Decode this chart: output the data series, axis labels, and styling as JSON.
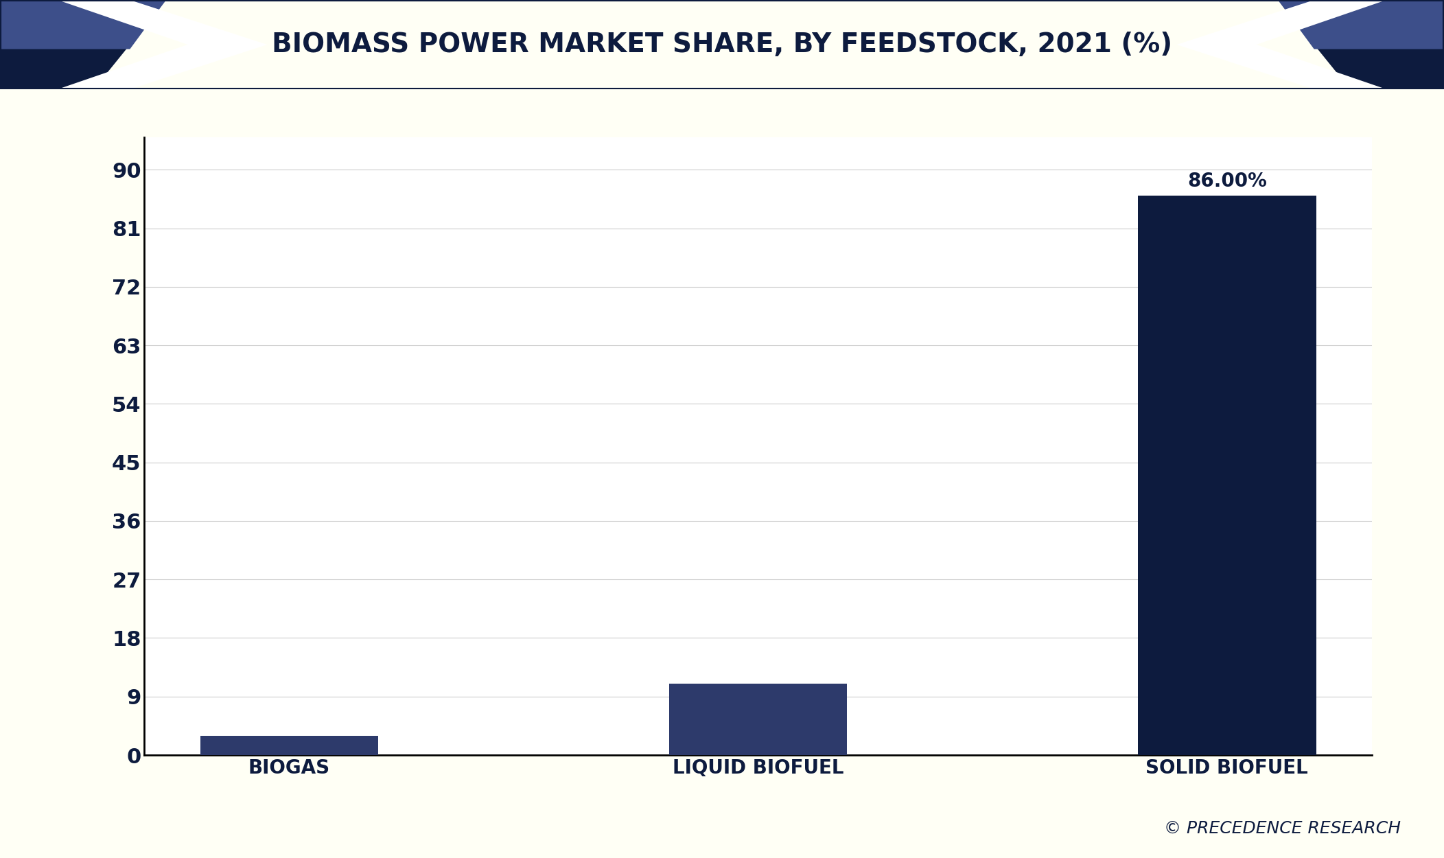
{
  "title": "BIOMASS POWER MARKET SHARE, BY FEEDSTOCK, 2021 (%)",
  "categories": [
    "BIOGAS",
    "LIQUID BIOFUEL",
    "SOLID BIOFUEL"
  ],
  "values": [
    3.0,
    11.0,
    86.0
  ],
  "bar_colors": [
    "#2d3a6b",
    "#2d3a6b",
    "#0d1b3e"
  ],
  "annotation": "86.00%",
  "annotation_index": 2,
  "yticks": [
    0,
    9,
    18,
    27,
    36,
    45,
    54,
    63,
    72,
    81,
    90
  ],
  "ylim": [
    0,
    95
  ],
  "background_color": "#fffff5",
  "plot_bg_color": "#ffffff",
  "title_color": "#0d1b3e",
  "tick_color": "#0d1b3e",
  "grid_color": "#cccccc",
  "watermark": "© PRECEDENCE RESEARCH",
  "title_fontsize": 28,
  "tick_fontsize": 22,
  "xlabel_fontsize": 20,
  "annotation_fontsize": 20,
  "watermark_fontsize": 18,
  "bar_width": 0.38,
  "dark_navy": "#0d1b3e",
  "mid_blue": "#3d4f8a",
  "border_color": "#0d1b3e",
  "header_bg": "#ffffff"
}
